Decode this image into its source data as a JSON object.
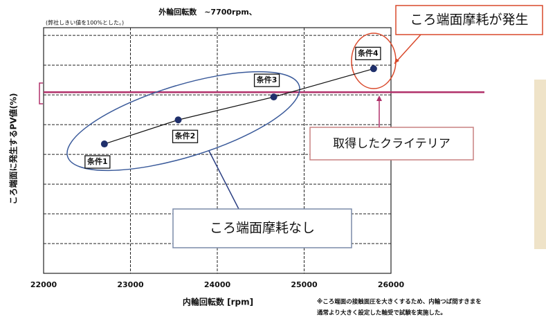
{
  "chart_data": {
    "type": "line",
    "title": "外輪回転数　~7700rpm、",
    "subtitle": "(弊社しきい値を100%とした。)",
    "x_label": "内輪回転数 [rpm]",
    "y_label": "ころ端面に発生するPV値(%)",
    "x": [
      22700,
      23550,
      24650,
      25800
    ],
    "point_labels": [
      "条件1",
      "条件2",
      "条件3",
      "条件4"
    ],
    "series": [
      {
        "color": "#1f2f6b",
        "values": [
          4.35,
          5.16,
          5.93,
          6.88
        ]
      }
    ],
    "xlim": [
      22000,
      26000
    ],
    "xticks": [
      22000,
      23000,
      24000,
      25000,
      26000
    ],
    "ylim": [
      0,
      8.26
    ],
    "yticks": [
      0,
      1,
      2,
      3,
      4,
      5,
      6,
      7,
      8
    ],
    "grid": true,
    "criterion": {
      "value": 6.09,
      "color": "#b0306a"
    },
    "annotations": [
      "ころ端面摩耗が発生",
      "取得したクライテリア",
      "ころ端面摩耗なし"
    ],
    "footnote": [
      "※ころ端面の接触面圧を大きくするため、内輪つば間すきまを",
      "通常より大きく設定した軸受で試験を実施した。"
    ]
  }
}
